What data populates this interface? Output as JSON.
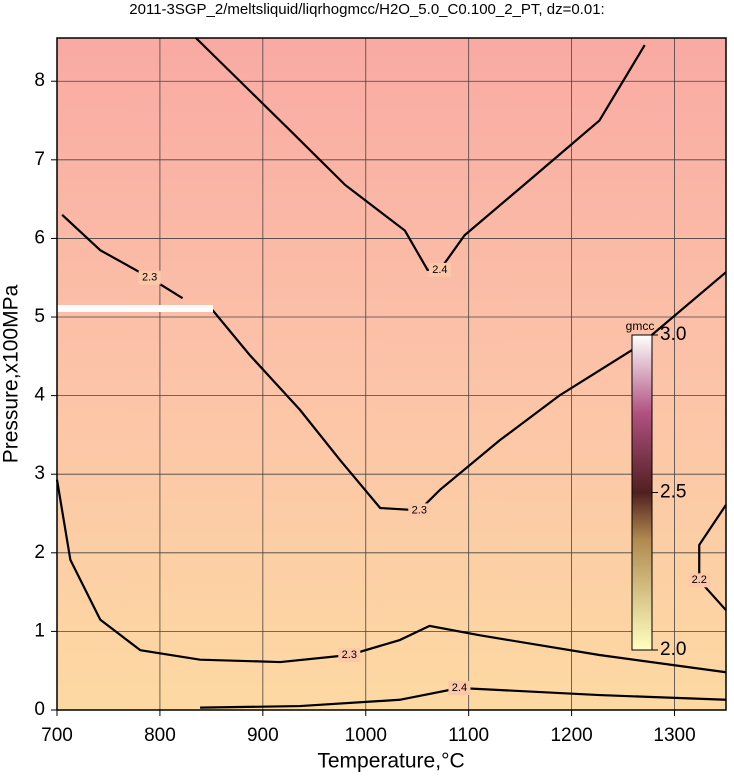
{
  "chart_data": {
    "type": "contour",
    "title": "2011-3SGP_2/meltsliquid/liqrhogmcc/H2O_5.0_C0.100_2_PT, dz=0.01:",
    "x_label": "Temperature,°C",
    "y_label": "Pressure,x100MPa",
    "xlim": [
      700,
      1350
    ],
    "ylim": [
      0,
      8.55
    ],
    "xticks": [
      700,
      800,
      900,
      1000,
      1100,
      1200,
      1300
    ],
    "yticks": [
      0,
      1,
      2,
      3,
      4,
      5,
      6,
      7,
      8
    ],
    "grid": true,
    "contours": [
      {
        "level": 2.4,
        "x": [
          835,
          926,
          980,
          1038,
          1060,
          1072,
          1096,
          1159,
          1227,
          1271
        ],
        "y": [
          8.55,
          7.38,
          6.68,
          6.1,
          5.6,
          5.6,
          6.04,
          6.74,
          7.5,
          8.46
        ]
      },
      {
        "level": 2.3,
        "x": [
          705,
          742,
          790,
          822
        ],
        "y": [
          6.3,
          5.85,
          5.5,
          5.24
        ]
      },
      {
        "level": 2.3,
        "x": [
          851,
          887,
          936,
          975,
          1014,
          1052,
          1072,
          1130,
          1188,
          1266,
          1350
        ],
        "y": [
          5.09,
          4.52,
          3.82,
          3.18,
          2.57,
          2.54,
          2.8,
          3.43,
          4.0,
          4.64,
          5.57
        ]
      },
      {
        "level": 2.3,
        "x": [
          700,
          713,
          742,
          781,
          839,
          917,
          984,
          1033,
          1062,
          1111,
          1227,
          1350
        ],
        "y": [
          2.93,
          1.91,
          1.15,
          0.76,
          0.64,
          0.61,
          0.7,
          0.89,
          1.07,
          0.95,
          0.7,
          0.48
        ]
      },
      {
        "level": 2.4,
        "x": [
          839,
          936,
          1033,
          1091,
          1227,
          1350
        ],
        "y": [
          0.03,
          0.05,
          0.13,
          0.28,
          0.19,
          0.13
        ]
      },
      {
        "level": 2.2,
        "x": [
          1350,
          1324,
          1324,
          1350
        ],
        "y": [
          2.61,
          2.1,
          1.65,
          1.27
        ]
      }
    ],
    "colorbar": {
      "title": "gmcc",
      "lim": [
        2.0,
        3.0
      ],
      "ticks": [
        {
          "value": 2.0,
          "label": "2.0"
        },
        {
          "value": 2.5,
          "label": "2.5"
        },
        {
          "value": 3.0,
          "label": "3.0"
        }
      ]
    }
  }
}
